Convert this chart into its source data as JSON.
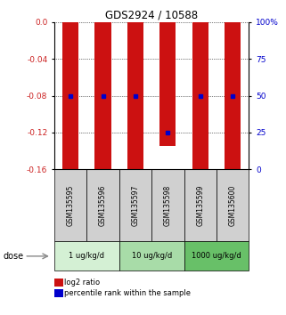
{
  "title": "GDS2924 / 10588",
  "samples": [
    "GSM135595",
    "GSM135596",
    "GSM135597",
    "GSM135598",
    "GSM135599",
    "GSM135600"
  ],
  "log2_ratio": [
    -0.16,
    -0.16,
    -0.16,
    -0.135,
    -0.16,
    -0.16
  ],
  "log2_ratio_top": [
    0.0,
    0.0,
    0.0,
    0.0,
    0.0,
    0.0
  ],
  "percentile_rank": [
    50,
    50,
    50,
    25,
    50,
    50
  ],
  "dose_groups": [
    {
      "label": "1 ug/kg/d",
      "samples": [
        0,
        1
      ],
      "colors": [
        "#d4f0d4",
        "#c0e8c0"
      ]
    },
    {
      "label": "10 ug/kg/d",
      "samples": [
        2,
        3
      ],
      "colors": [
        "#a8dca8",
        "#98d498"
      ]
    },
    {
      "label": "1000 ug/kg/d",
      "samples": [
        4,
        5
      ],
      "colors": [
        "#68c068",
        "#58b058"
      ]
    }
  ],
  "bar_color": "#cc1111",
  "dot_color": "#0000cc",
  "ylim_left": [
    -0.16,
    0.0
  ],
  "ylim_right": [
    0,
    100
  ],
  "yticks_left": [
    0.0,
    -0.04,
    -0.08,
    -0.12,
    -0.16
  ],
  "yticks_right": [
    100,
    75,
    50,
    25,
    0
  ],
  "bar_width": 0.5,
  "legend_items": [
    {
      "label": "log2 ratio",
      "color": "#cc1111"
    },
    {
      "label": "percentile rank within the sample",
      "color": "#0000cc"
    }
  ],
  "dose_label": "dose",
  "sample_box_facecolor": "#d0d0d0",
  "group_colors": [
    "#d4f0d4",
    "#a8dca8",
    "#68c068"
  ]
}
